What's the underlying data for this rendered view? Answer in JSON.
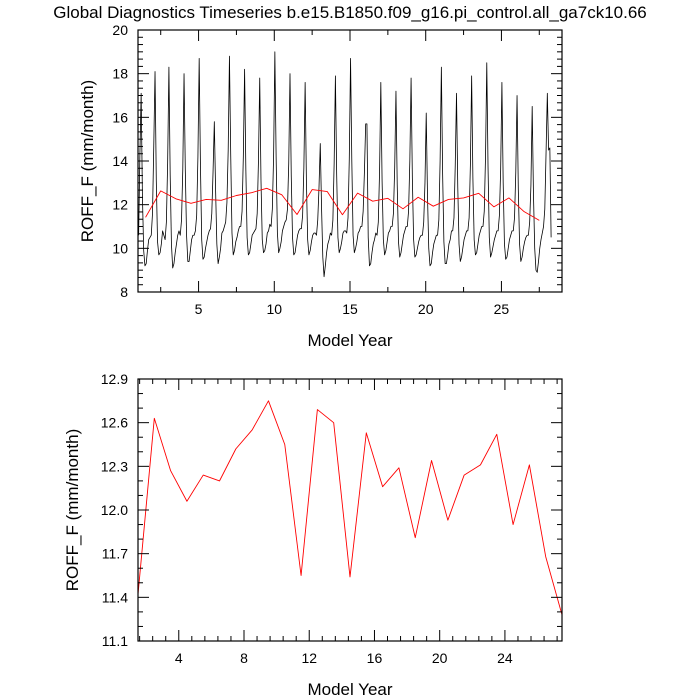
{
  "title": "Global Diagnostics Timeseries b.e15.B1850.f09_g16.pi_control.all_ga7ck10.66",
  "colors": {
    "monthly": "#000000",
    "annual": "#ff0000",
    "frame": "#000000"
  },
  "chart_data": [
    {
      "type": "line",
      "xlabel": "Model Year",
      "ylabel": "ROFF_F (mm/month)",
      "xlim": [
        1,
        29
      ],
      "ylim": [
        8,
        20
      ],
      "xticks": [
        5,
        10,
        15,
        20,
        25
      ],
      "yticks": [
        8,
        10,
        12,
        14,
        16,
        18,
        20
      ],
      "ytick_labels": [
        "8",
        "10",
        "12",
        "14",
        "16",
        "18",
        "20"
      ],
      "series": [
        {
          "color": "#000000",
          "x_start": 1.0417,
          "x_step": 0.0833,
          "values": [
            10.6,
            14.3,
            17.1,
            12.4,
            9.9,
            9.2,
            9.3,
            9.9,
            10.4,
            10.5,
            10.6,
            11.6,
            14.7,
            18.1,
            13.1,
            10.3,
            9.7,
            9.8,
            10.2,
            10.8,
            10.6,
            10.4,
            11.2,
            13.9,
            18.3,
            13.4,
            10.2,
            9.1,
            9.3,
            9.8,
            10.2,
            10.6,
            10.8,
            10.6,
            11.3,
            13.6,
            18.0,
            13.6,
            10.6,
            9.4,
            9.4,
            9.9,
            10.4,
            10.6,
            10.6,
            10.8,
            11.5,
            14.2,
            18.7,
            13.8,
            10.4,
            9.5,
            9.6,
            10.0,
            10.3,
            10.6,
            10.8,
            10.9,
            11.6,
            13.5,
            15.8,
            12.7,
            10.2,
            9.3,
            9.6,
            10.0,
            10.7,
            10.8,
            11.0,
            11.2,
            12.1,
            14.5,
            18.8,
            14.3,
            10.7,
            9.7,
            9.9,
            10.3,
            10.5,
            10.8,
            11.0,
            11.0,
            11.7,
            14.2,
            18.2,
            13.6,
            10.5,
            9.7,
            9.8,
            10.2,
            10.6,
            10.7,
            10.8,
            10.9,
            11.6,
            14.0,
            17.8,
            13.1,
            10.4,
            9.8,
            9.9,
            10.2,
            10.7,
            10.8,
            11.1,
            11.0,
            11.8,
            14.2,
            19.0,
            14.2,
            10.7,
            9.8,
            10.0,
            10.3,
            10.8,
            11.0,
            11.2,
            11.3,
            11.8,
            13.9,
            18.0,
            13.3,
            10.5,
            9.7,
            9.8,
            10.2,
            10.6,
            10.8,
            10.9,
            10.9,
            11.5,
            13.7,
            17.6,
            13.1,
            10.4,
            9.7,
            9.9,
            10.3,
            10.6,
            10.7,
            10.7,
            10.6,
            11.3,
            12.8,
            14.8,
            11.9,
            9.6,
            8.7,
            9.2,
            9.8,
            10.2,
            10.4,
            10.7,
            10.6,
            11.3,
            13.9,
            17.9,
            13.4,
            10.5,
            9.8,
            10.0,
            10.3,
            10.7,
            10.8,
            10.8,
            10.7,
            11.4,
            14.1,
            18.7,
            14.0,
            10.6,
            9.8,
            10.0,
            10.3,
            10.7,
            10.8,
            11.0,
            11.0,
            11.7,
            13.5,
            15.7,
            15.7,
            10.5,
            9.2,
            9.3,
            9.8,
            10.2,
            10.4,
            10.7,
            10.6,
            11.2,
            13.5,
            17.6,
            13.1,
            10.4,
            9.7,
            9.9,
            10.3,
            10.7,
            10.8,
            11.0,
            11.0,
            11.6,
            13.7,
            17.2,
            12.9,
            10.3,
            9.6,
            9.8,
            10.2,
            10.6,
            10.8,
            11.0,
            11.0,
            11.7,
            14.0,
            17.8,
            13.2,
            10.4,
            9.6,
            9.7,
            10.0,
            10.3,
            10.5,
            10.6,
            10.6,
            11.2,
            13.0,
            16.2,
            12.4,
            10.0,
            9.2,
            9.3,
            9.8,
            10.2,
            10.4,
            10.6,
            10.6,
            11.3,
            14.0,
            18.3,
            13.4,
            10.3,
            9.3,
            9.3,
            9.7,
            10.2,
            10.4,
            10.8,
            10.8,
            11.4,
            13.8,
            17.1,
            12.8,
            10.2,
            9.4,
            9.6,
            10.0,
            10.4,
            10.6,
            10.8,
            10.8,
            11.4,
            13.8,
            17.9,
            13.2,
            10.4,
            9.7,
            9.8,
            10.2,
            10.6,
            10.8,
            11.0,
            11.0,
            11.7,
            14.2,
            18.5,
            13.7,
            10.5,
            9.6,
            9.8,
            10.1,
            10.4,
            10.6,
            10.8,
            10.8,
            11.5,
            13.6,
            17.6,
            13.0,
            10.2,
            9.5,
            9.6,
            10.0,
            10.4,
            10.6,
            10.8,
            10.8,
            11.4,
            13.5,
            17.0,
            12.7,
            10.2,
            9.4,
            9.6,
            10.0,
            10.3,
            10.5,
            10.6,
            10.6,
            11.2,
            12.9,
            16.5,
            12.5,
            10.0,
            9.0,
            8.9,
            9.4,
            10.0,
            10.4,
            10.7,
            11.0,
            11.8,
            14.4,
            17.1,
            14.5,
            14.6,
            10.5
          ]
        },
        {
          "color": "#ff0000",
          "x": [
            1.5,
            2.5,
            3.5,
            4.5,
            5.5,
            6.5,
            7.5,
            8.5,
            9.5,
            10.5,
            11.5,
            12.5,
            13.5,
            14.5,
            15.5,
            16.5,
            17.5,
            18.5,
            19.5,
            20.5,
            21.5,
            22.5,
            23.5,
            24.5,
            25.5,
            26.5,
            27.5
          ],
          "values": [
            11.42,
            12.63,
            12.27,
            12.06,
            12.24,
            12.2,
            12.42,
            12.55,
            12.75,
            12.45,
            11.55,
            12.69,
            12.6,
            11.54,
            12.53,
            12.16,
            12.29,
            11.81,
            12.34,
            11.93,
            12.24,
            12.31,
            12.52,
            11.9,
            12.31,
            11.68,
            11.28
          ]
        }
      ]
    },
    {
      "type": "line",
      "xlabel": "Model Year",
      "ylabel": "ROFF_F (mm/month)",
      "xlim": [
        1.5,
        27.5
      ],
      "ylim": [
        11.1,
        12.9
      ],
      "xticks": [
        4,
        8,
        12,
        16,
        20,
        24
      ],
      "yticks": [
        11.1,
        11.4,
        11.7,
        12.0,
        12.3,
        12.6,
        12.9
      ],
      "ytick_labels": [
        "11.1",
        "11.4",
        "11.7",
        "12.0",
        "12.3",
        "12.6",
        "12.9"
      ],
      "series": [
        {
          "color": "#ff0000",
          "x": [
            1.5,
            2.5,
            3.5,
            4.5,
            5.5,
            6.5,
            7.5,
            8.5,
            9.5,
            10.5,
            11.5,
            12.5,
            13.5,
            14.5,
            15.5,
            16.5,
            17.5,
            18.5,
            19.5,
            20.5,
            21.5,
            22.5,
            23.5,
            24.5,
            25.5,
            26.5,
            27.5
          ],
          "values": [
            11.42,
            12.63,
            12.27,
            12.06,
            12.24,
            12.2,
            12.42,
            12.55,
            12.75,
            12.45,
            11.55,
            12.69,
            12.6,
            11.54,
            12.53,
            12.16,
            12.29,
            11.81,
            12.34,
            11.93,
            12.24,
            12.31,
            12.52,
            11.9,
            12.31,
            11.68,
            11.28
          ]
        }
      ]
    }
  ]
}
